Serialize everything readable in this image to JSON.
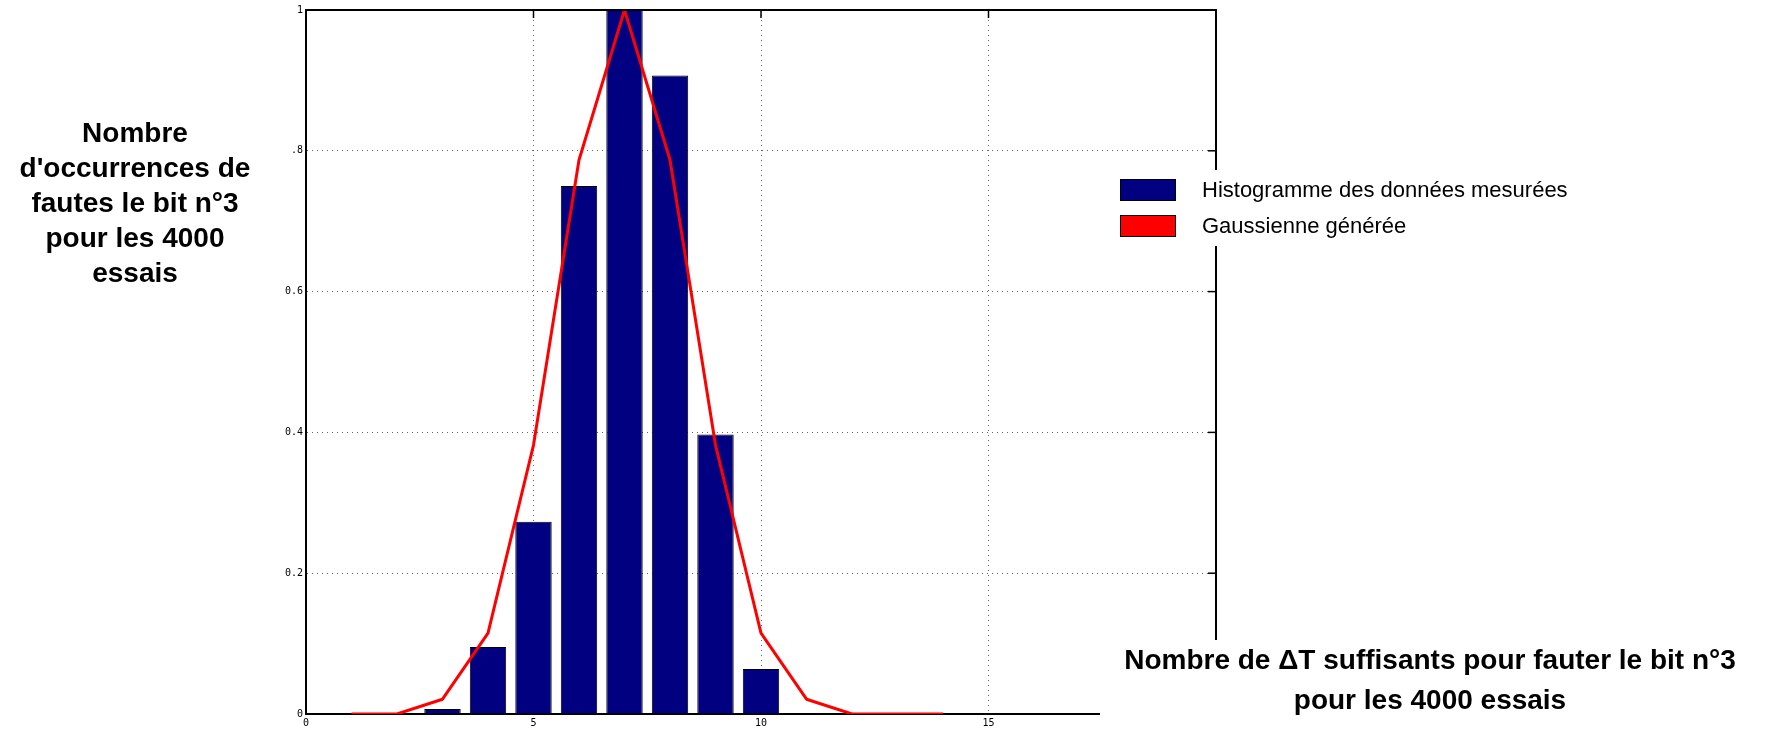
{
  "chart_data": {
    "type": "bar",
    "xlabel": "Nombre de ΔT suffisants pour fauter le bit n°3 pour les 4000 essais",
    "ylabel": "Nombre d'occurrences de fautes le bit n°3 pour les 4000 essais",
    "x": [
      3,
      4,
      5,
      6,
      7,
      8,
      9,
      10
    ],
    "series": [
      {
        "name": "Histogramme des données mesurées",
        "color": "#000080",
        "values": [
          0.007,
          0.095,
          0.273,
          0.75,
          1.0,
          0.907,
          0.397,
          0.064
        ]
      },
      {
        "name": "Gaussienne générée",
        "type": "line",
        "color": "#ff0000",
        "x": [
          1,
          2,
          3,
          4,
          5,
          6,
          7,
          8,
          9,
          10,
          11,
          12,
          13,
          14
        ],
        "values": [
          0,
          0,
          0.021,
          0.115,
          0.382,
          0.787,
          1.0,
          0.787,
          0.382,
          0.115,
          0.021,
          0,
          0,
          0
        ]
      }
    ],
    "xlim": [
      0,
      20
    ],
    "xticks": [
      0,
      5,
      10,
      15,
      {
        "value": 20,
        "label": null
      }
    ],
    "ylim": [
      0,
      1
    ],
    "yticks": [
      0,
      0.2,
      0.4,
      0.6,
      {
        "value": 0.8,
        "label": ".8"
      },
      1
    ],
    "grid": true,
    "legend": "right",
    "marker": "none",
    "line_style": "solid"
  }
}
